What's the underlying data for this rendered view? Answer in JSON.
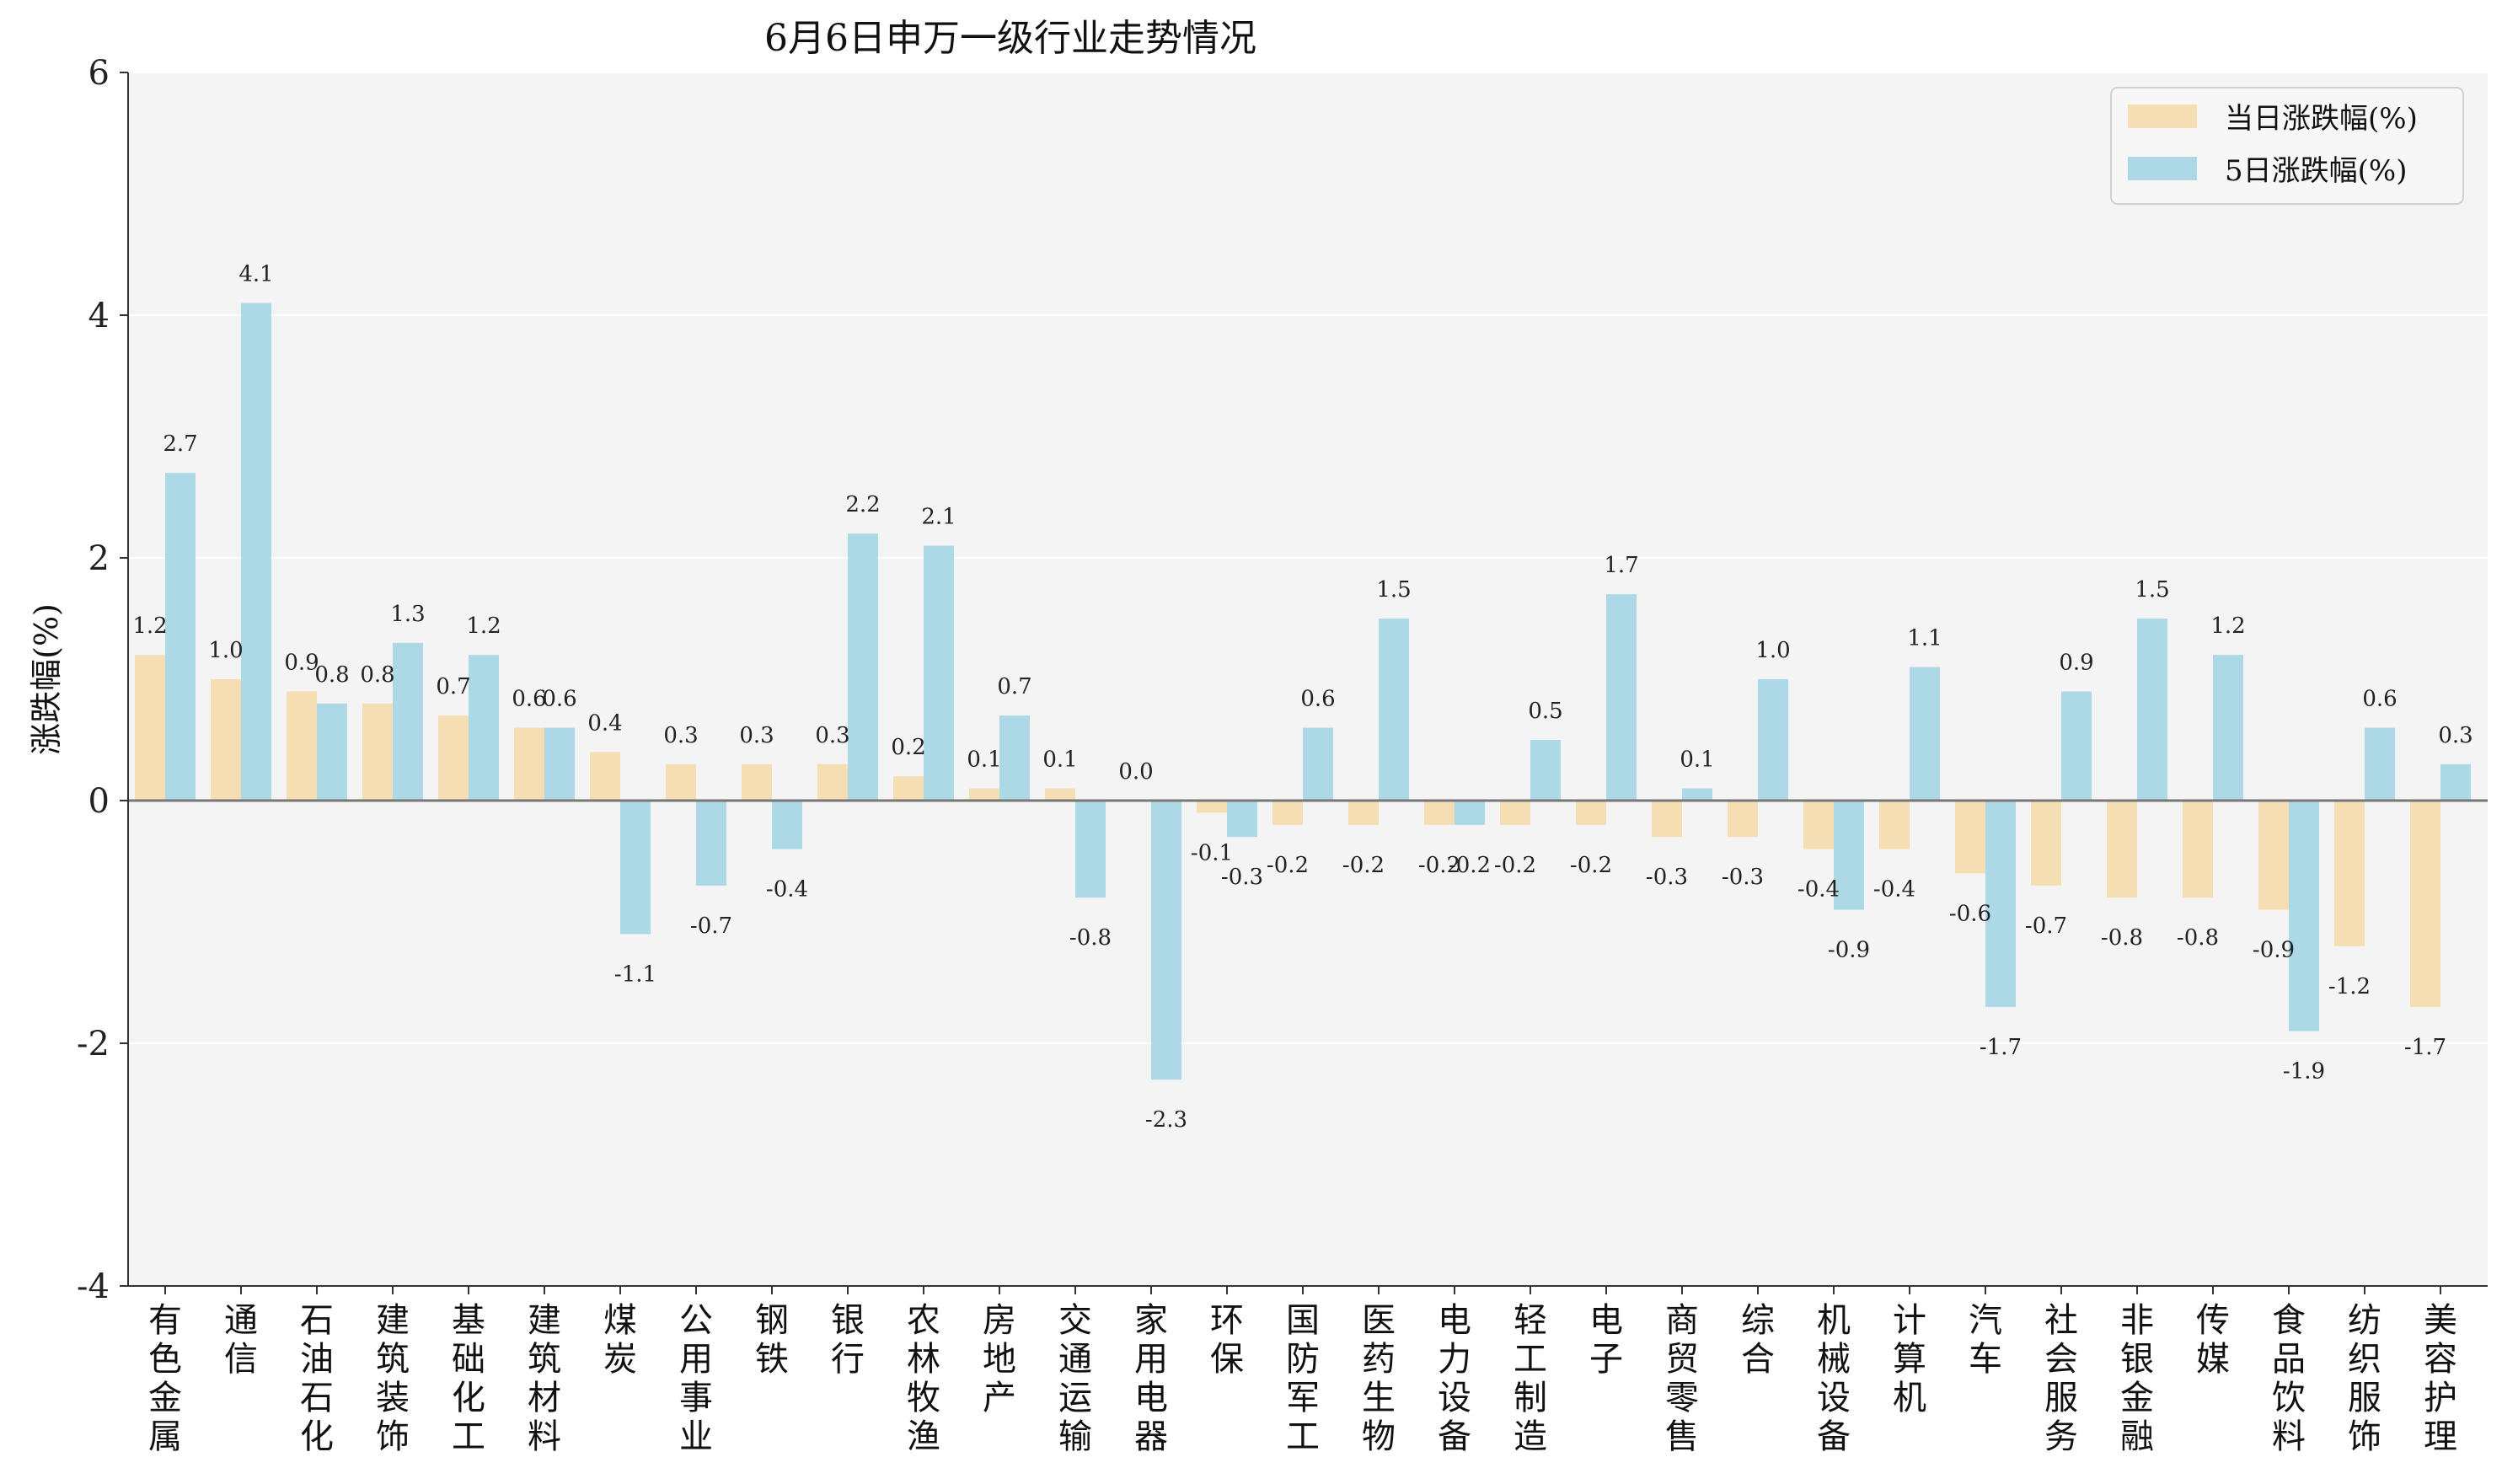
{
  "chart_data": {
    "type": "bar",
    "title": "6月6日申万一级行业走势情况",
    "ylabel": "涨跌幅(%)",
    "xlabel": "",
    "ylim": [
      -4,
      6
    ],
    "yticks": [
      -4,
      -2,
      0,
      2,
      4,
      6
    ],
    "ytick_labels": [
      "-4",
      "-2",
      "0",
      "2",
      "4",
      "6"
    ],
    "grid": true,
    "legend_position": "top-right",
    "categories": [
      "有色金属",
      "通信",
      "石油石化",
      "建筑装饰",
      "基础化工",
      "建筑材料",
      "煤炭",
      "公用事业",
      "钢铁",
      "银行",
      "农林牧渔",
      "房地产",
      "交通运输",
      "家用电器",
      "环保",
      "国防军工",
      "医药生物",
      "电力设备",
      "轻工制造",
      "电子",
      "商贸零售",
      "综合",
      "机械设备",
      "计算机",
      "汽车",
      "社会服务",
      "非银金融",
      "传媒",
      "食品饮料",
      "纺织服饰",
      "美容护理"
    ],
    "series": [
      {
        "name": "当日涨跌幅(%)",
        "color": "#f5deb3",
        "values": [
          1.2,
          1.0,
          0.9,
          0.8,
          0.7,
          0.6,
          0.4,
          0.3,
          0.3,
          0.3,
          0.2,
          0.1,
          0.1,
          0.0,
          -0.1,
          -0.2,
          -0.2,
          -0.2,
          -0.2,
          -0.2,
          -0.3,
          -0.3,
          -0.4,
          -0.4,
          -0.6,
          -0.7,
          -0.8,
          -0.8,
          -0.9,
          -1.2,
          -1.7
        ],
        "labels": [
          "1.2",
          "1.0",
          "0.9",
          "0.8",
          "0.7",
          "0.6",
          "0.4",
          "0.3",
          "0.3",
          "0.3",
          "0.2",
          "0.1",
          "0.1",
          "0.0",
          "-0.1",
          "-0.2",
          "-0.2",
          "-0.2",
          "-0.2",
          "-0.2",
          "-0.3",
          "-0.3",
          "-0.4",
          "-0.4",
          "-0.6",
          "-0.7",
          "-0.8",
          "-0.8",
          "-0.9",
          "-1.2",
          "-1.7"
        ]
      },
      {
        "name": "5日涨跌幅(%)",
        "color": "#add8e6",
        "values": [
          2.7,
          4.1,
          0.8,
          1.3,
          1.2,
          0.6,
          -1.1,
          -0.7,
          -0.4,
          2.2,
          2.1,
          0.7,
          -0.8,
          -2.3,
          -0.3,
          0.6,
          1.5,
          -0.2,
          0.5,
          1.7,
          0.1,
          1.0,
          -0.9,
          1.1,
          -1.7,
          0.9,
          1.5,
          1.2,
          -1.9,
          0.6,
          0.3
        ],
        "labels": [
          "2.7",
          "4.1",
          "0.8",
          "1.3",
          "1.2",
          "0.6",
          "-1.1",
          "-0.7",
          "-0.4",
          "2.2",
          "2.1",
          "0.7",
          "-0.8",
          "-2.3",
          "-0.3",
          "0.6",
          "1.5",
          "-0.2",
          "0.5",
          "1.7",
          "0.1",
          "1.0",
          "-0.9",
          "1.1",
          "-1.7",
          "0.9",
          "1.5",
          "1.2",
          "-1.9",
          "0.6",
          "0.3"
        ]
      }
    ]
  }
}
